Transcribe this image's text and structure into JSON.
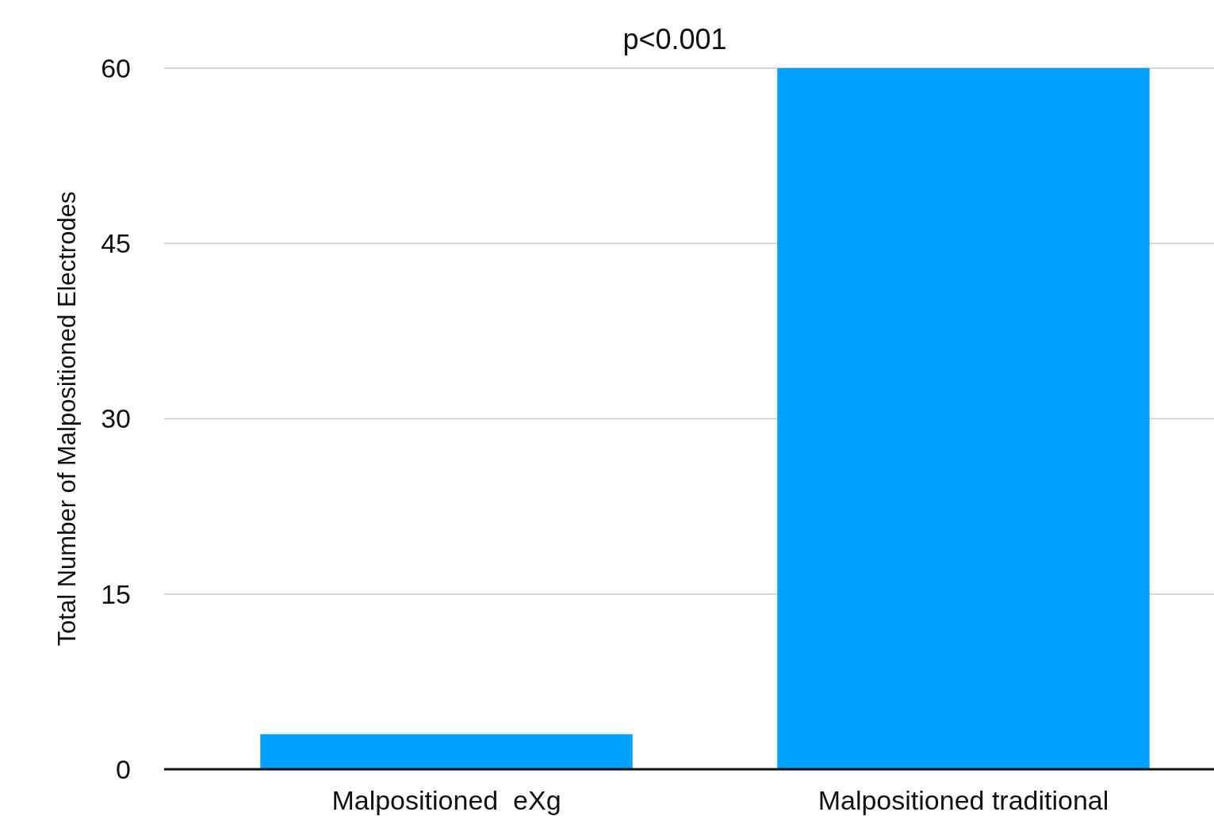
{
  "chart_data": {
    "type": "bar",
    "ylabel": "Total Number of Malpositioned Electrodes",
    "categories": [
      "Malpositioned  eXg",
      "Malpositioned traditional"
    ],
    "values": [
      3,
      60
    ],
    "color": "#00a0ff",
    "ylim": [
      0,
      60
    ],
    "yticks": [
      0,
      15,
      30,
      45,
      60
    ],
    "grid": "y",
    "annotations": [
      "p<0.001"
    ]
  }
}
